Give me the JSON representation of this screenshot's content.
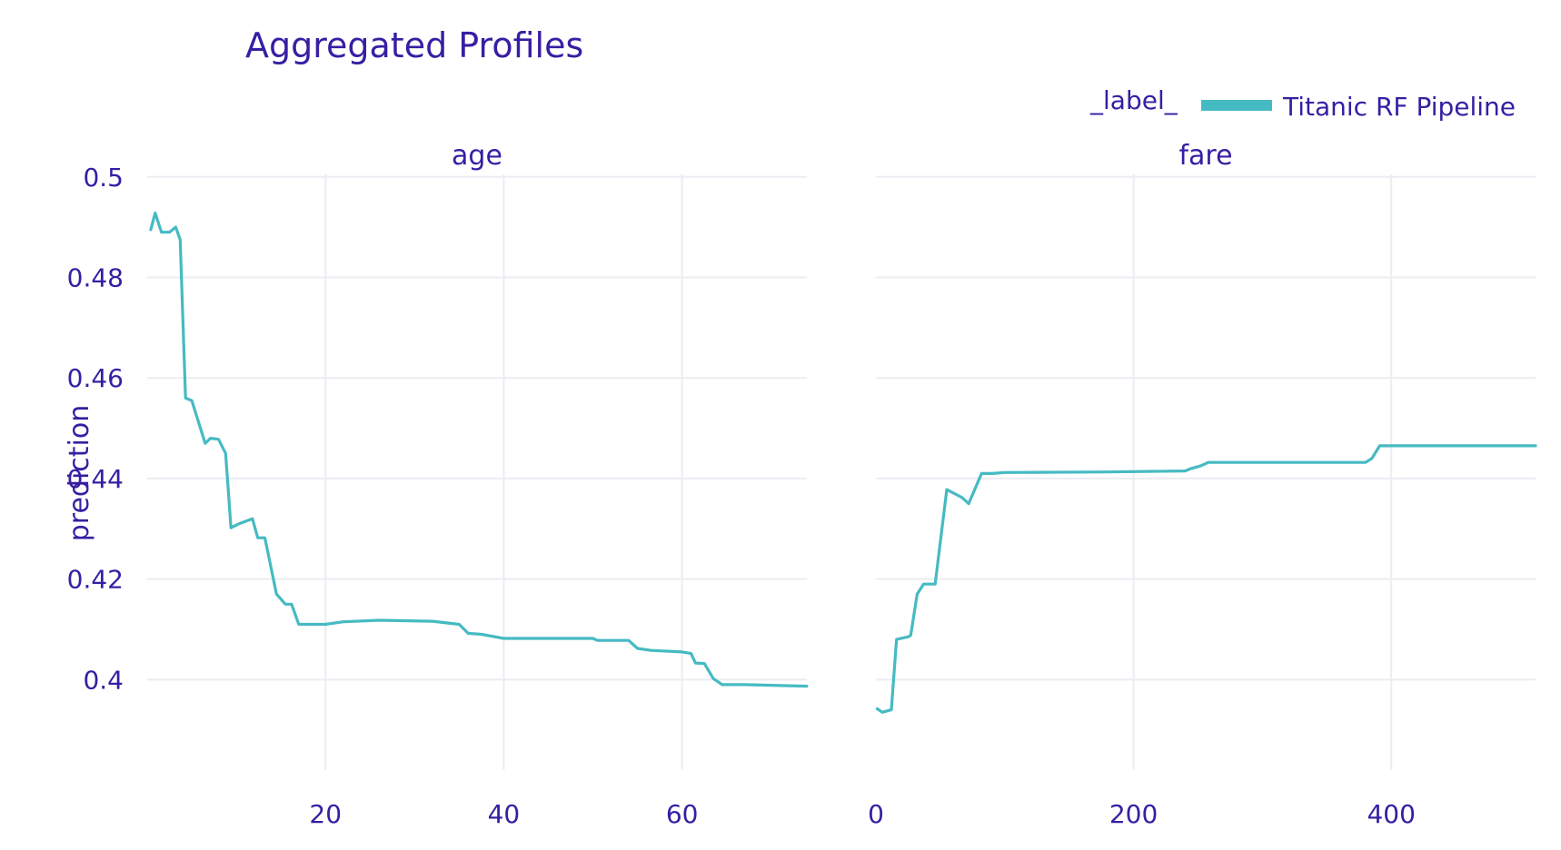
{
  "chart_data": {
    "type": "line",
    "title": "Aggregated Profiles",
    "ylabel": "prediction",
    "legend": {
      "title": "_label_",
      "placement": "top-right"
    },
    "series": [
      {
        "name": "Titanic RF Pipeline",
        "color": "#46bac2"
      }
    ],
    "grid": true,
    "ylim": [
      0.382,
      0.5005
    ],
    "yticks": [
      0.4,
      0.42,
      0.44,
      0.46,
      0.48,
      0.5
    ],
    "yticklabels": [
      "0.4",
      "0.42",
      "0.44",
      "0.46",
      "0.48",
      "0.5"
    ],
    "panels": [
      {
        "subtitle": "age",
        "xlim": [
          0,
          74
        ],
        "xticks": [
          20,
          40,
          60
        ],
        "xticklabels": [
          "20",
          "40",
          "60"
        ],
        "points": [
          [
            0.4,
            0.4895
          ],
          [
            0.9,
            0.4928
          ],
          [
            1.6,
            0.489
          ],
          [
            2.5,
            0.489
          ],
          [
            3.2,
            0.49
          ],
          [
            3.7,
            0.4875
          ],
          [
            4.3,
            0.456
          ],
          [
            5.0,
            0.4555
          ],
          [
            6.5,
            0.447
          ],
          [
            7.1,
            0.448
          ],
          [
            8.0,
            0.4478
          ],
          [
            8.8,
            0.445
          ],
          [
            9.4,
            0.4302
          ],
          [
            10.3,
            0.431
          ],
          [
            11.8,
            0.432
          ],
          [
            12.4,
            0.4282
          ],
          [
            13.2,
            0.4282
          ],
          [
            14.5,
            0.417
          ],
          [
            15.5,
            0.415
          ],
          [
            16.2,
            0.415
          ],
          [
            17.0,
            0.411
          ],
          [
            18.0,
            0.411
          ],
          [
            20.0,
            0.411
          ],
          [
            22.0,
            0.4115
          ],
          [
            26.0,
            0.4118
          ],
          [
            32.0,
            0.4116
          ],
          [
            35.0,
            0.411
          ],
          [
            36.0,
            0.4092
          ],
          [
            37.5,
            0.409
          ],
          [
            40.0,
            0.4082
          ],
          [
            45.0,
            0.4082
          ],
          [
            50.0,
            0.4082
          ],
          [
            50.5,
            0.4078
          ],
          [
            54.0,
            0.4078
          ],
          [
            55.0,
            0.4062
          ],
          [
            56.5,
            0.4058
          ],
          [
            60.0,
            0.4055
          ],
          [
            61.0,
            0.4052
          ],
          [
            61.5,
            0.4033
          ],
          [
            62.5,
            0.4032
          ],
          [
            63.5,
            0.4002
          ],
          [
            64.5,
            0.399
          ],
          [
            67.0,
            0.399
          ],
          [
            74.0,
            0.3987
          ]
        ]
      },
      {
        "subtitle": "fare",
        "xlim": [
          0,
          512
        ],
        "xticks": [
          0,
          200,
          400
        ],
        "xticklabels": [
          "0",
          "200",
          "400"
        ],
        "points": [
          [
            1,
            0.3942
          ],
          [
            5,
            0.3935
          ],
          [
            12,
            0.394
          ],
          [
            16,
            0.408
          ],
          [
            25,
            0.4085
          ],
          [
            27,
            0.4088
          ],
          [
            32,
            0.417
          ],
          [
            37,
            0.419
          ],
          [
            46,
            0.419
          ],
          [
            55,
            0.4378
          ],
          [
            67,
            0.4362
          ],
          [
            72,
            0.435
          ],
          [
            82,
            0.441
          ],
          [
            90,
            0.441
          ],
          [
            100,
            0.4412
          ],
          [
            180,
            0.4413
          ],
          [
            240,
            0.4415
          ],
          [
            245,
            0.442
          ],
          [
            252,
            0.4425
          ],
          [
            258,
            0.4432
          ],
          [
            300,
            0.4432
          ],
          [
            380,
            0.4432
          ],
          [
            385,
            0.444
          ],
          [
            391,
            0.4465
          ],
          [
            450,
            0.4465
          ],
          [
            512,
            0.4465
          ]
        ]
      }
    ]
  }
}
